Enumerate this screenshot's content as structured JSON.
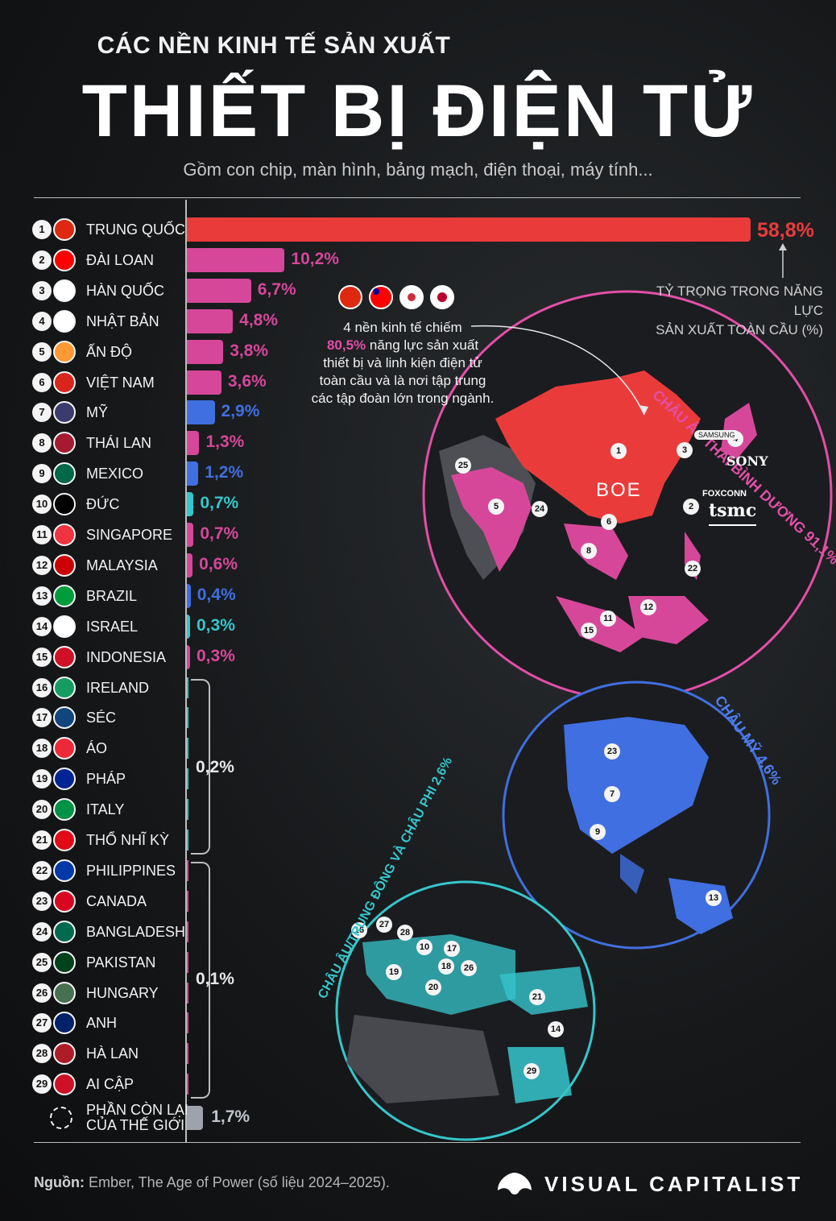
{
  "header": {
    "kicker": "CÁC NỀN KINH TẾ SẢN XUẤT",
    "title": "THIẾT BỊ ĐIỆN TỬ",
    "subtitle": "Gồm con chip, màn hình, bảng mạch, điện thoại, máy tính..."
  },
  "chart_data": {
    "type": "bar",
    "orientation": "horizontal",
    "title": "THIẾT BỊ ĐIỆN TỬ",
    "axis_note": [
      "TỶ TRỌNG TRONG NĂNG LỰC",
      "SẢN XUẤT TOÀN CẦU (%)"
    ],
    "categories": [
      "TRUNG QUỐC",
      "ĐÀI LOAN",
      "HÀN QUỐC",
      "NHẬT BẢN",
      "ẤN ĐỘ",
      "VIỆT NAM",
      "MỸ",
      "THÁI LAN",
      "MEXICO",
      "ĐỨC",
      "SINGAPORE",
      "MALAYSIA",
      "BRAZIL",
      "ISRAEL",
      "INDONESIA"
    ],
    "ranks": [
      "1",
      "2",
      "3",
      "4",
      "5",
      "6",
      "7",
      "8",
      "9",
      "10",
      "11",
      "12",
      "13",
      "14",
      "15"
    ],
    "values": [
      58.8,
      10.2,
      6.7,
      4.8,
      3.8,
      3.6,
      2.9,
      1.3,
      1.2,
      0.7,
      0.7,
      0.6,
      0.4,
      0.3,
      0.3
    ],
    "labels": [
      "58,8%",
      "10,2%",
      "6,7%",
      "4,8%",
      "3,8%",
      "3,6%",
      "2,9%",
      "1,3%",
      "1,2%",
      "0,7%",
      "0,7%",
      "0,6%",
      "0,4%",
      "0,3%",
      "0,3%"
    ],
    "regions": [
      "asia",
      "asia",
      "asia",
      "asia",
      "asia",
      "asia",
      "americas",
      "asia",
      "americas",
      "europe",
      "asia",
      "asia",
      "americas",
      "europe",
      "asia"
    ],
    "group_02": {
      "ranks": [
        "16",
        "17",
        "18",
        "19",
        "20",
        "21"
      ],
      "categories": [
        "IRELAND",
        "SÉC",
        "ÁO",
        "PHÁP",
        "ITALY",
        "THỔ NHĨ KỲ"
      ],
      "label": "0,2%"
    },
    "group_01": {
      "ranks": [
        "22",
        "23",
        "24",
        "25",
        "26",
        "27",
        "28",
        "29"
      ],
      "categories": [
        "PHILIPPINES",
        "CANADA",
        "BANGLADESH",
        "PAKISTAN",
        "HUNGARY",
        "ANH",
        "HÀ LAN",
        "AI CẬP"
      ],
      "label": "0,1%"
    },
    "rest": {
      "category": [
        "PHẦN CÒN LẠI",
        "CỦA THẾ GIỚI"
      ],
      "value": 1.7,
      "label": "1,7%"
    },
    "colors": {
      "china": "#ea3b3b",
      "asia": "#d6479a",
      "americas": "#3f6fe0",
      "europe": "#35c6cc",
      "rest": "#9ea2aa"
    }
  },
  "callout": {
    "line1": "4 nền kinh tế chiếm",
    "highlight": "80,5%",
    "line2": " năng lực sản xuất",
    "line3": "thiết bị và linh kiện điện tử",
    "line4": "toàn cầu và là nơi tập trung",
    "line5": "các tập đoàn lớn trong ngành."
  },
  "maps": {
    "asia": {
      "label": "CHÂU Á - THÁI BÌNH DƯƠNG 91,1%",
      "markers": [
        "1",
        "2",
        "3",
        "4",
        "5",
        "6",
        "8",
        "11",
        "12",
        "15",
        "22",
        "24",
        "25"
      ]
    },
    "americas": {
      "label": "CHÂU MỸ 4,6%",
      "markers": [
        "23",
        "7",
        "9",
        "13"
      ]
    },
    "emea": {
      "label_a": "CHÂU ÂU/TRUNG ĐÔNG VÀ CHÂU PHI ",
      "label_b": "2,6%",
      "markers": [
        "16",
        "27",
        "28",
        "10",
        "17",
        "19",
        "18",
        "26",
        "20",
        "21",
        "14",
        "29"
      ]
    },
    "brands": {
      "samsung": "SAMSUNG",
      "sony": "SONY",
      "boe": "BOE",
      "foxconn": "FOXCONN",
      "tsmc": "tsmc"
    }
  },
  "footer": {
    "source_label": "Nguồn:",
    "source_text": " Ember, The Age of Power (số liệu 2024–2025).",
    "brand": "VISUAL CAPITALIST"
  }
}
